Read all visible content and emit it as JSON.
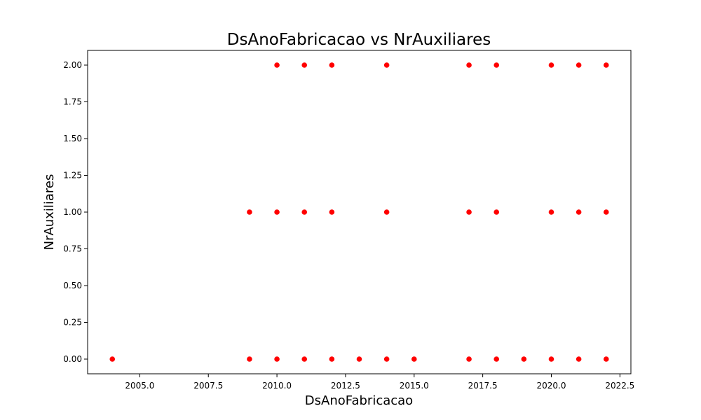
{
  "chart_data": {
    "type": "scatter",
    "title": "DsAnoFabricacao vs NrAuxiliares",
    "xlabel": "DsAnoFabricacao",
    "ylabel": "NrAuxiliares",
    "xlim": [
      2003.1,
      2022.9
    ],
    "ylim": [
      -0.1,
      2.1
    ],
    "xticks": [
      "2005.0",
      "2007.5",
      "2010.0",
      "2012.5",
      "2015.0",
      "2017.5",
      "2020.0",
      "2022.5"
    ],
    "xtick_values": [
      2005.0,
      2007.5,
      2010.0,
      2012.5,
      2015.0,
      2017.5,
      2020.0,
      2022.5
    ],
    "yticks": [
      "0.00",
      "0.25",
      "0.50",
      "0.75",
      "1.00",
      "1.25",
      "1.50",
      "1.75",
      "2.00"
    ],
    "ytick_values": [
      0.0,
      0.25,
      0.5,
      0.75,
      1.0,
      1.25,
      1.5,
      1.75,
      2.0
    ],
    "grid": false,
    "marker_color": "#ff0000",
    "points": [
      {
        "x": 2004,
        "y": 0
      },
      {
        "x": 2009,
        "y": 0
      },
      {
        "x": 2010,
        "y": 0
      },
      {
        "x": 2011,
        "y": 0
      },
      {
        "x": 2012,
        "y": 0
      },
      {
        "x": 2013,
        "y": 0
      },
      {
        "x": 2014,
        "y": 0
      },
      {
        "x": 2015,
        "y": 0
      },
      {
        "x": 2017,
        "y": 0
      },
      {
        "x": 2018,
        "y": 0
      },
      {
        "x": 2019,
        "y": 0
      },
      {
        "x": 2020,
        "y": 0
      },
      {
        "x": 2021,
        "y": 0
      },
      {
        "x": 2022,
        "y": 0
      },
      {
        "x": 2009,
        "y": 1
      },
      {
        "x": 2010,
        "y": 1
      },
      {
        "x": 2011,
        "y": 1
      },
      {
        "x": 2012,
        "y": 1
      },
      {
        "x": 2014,
        "y": 1
      },
      {
        "x": 2017,
        "y": 1
      },
      {
        "x": 2018,
        "y": 1
      },
      {
        "x": 2020,
        "y": 1
      },
      {
        "x": 2021,
        "y": 1
      },
      {
        "x": 2022,
        "y": 1
      },
      {
        "x": 2010,
        "y": 2
      },
      {
        "x": 2011,
        "y": 2
      },
      {
        "x": 2012,
        "y": 2
      },
      {
        "x": 2014,
        "y": 2
      },
      {
        "x": 2017,
        "y": 2
      },
      {
        "x": 2018,
        "y": 2
      },
      {
        "x": 2020,
        "y": 2
      },
      {
        "x": 2021,
        "y": 2
      },
      {
        "x": 2022,
        "y": 2
      }
    ]
  }
}
